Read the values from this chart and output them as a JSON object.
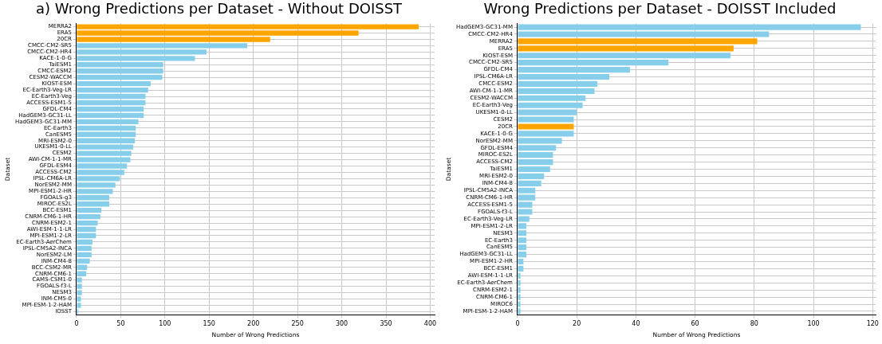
{
  "chart_data": [
    {
      "type": "bar",
      "orientation": "horizontal",
      "title": "a) Wrong Predictions per Dataset - Without DOISST",
      "xlabel": "Number of Wrong Predictions",
      "ylabel": "Dataset",
      "grid": true,
      "legend": false,
      "categories": [
        "MERRA2",
        "ERA5",
        "20CR",
        "CMCC-CM2-SR5",
        "CMCC-CM2-HR4",
        "KACE-1-0-G",
        "TaiESM1",
        "CMCC-ESM2",
        "CESM2-WACCM",
        "KIOST-ESM",
        "EC-Earth3-Veg-LR",
        "EC-Earth3-Veg",
        "ACCESS-ESM1-5",
        "GFDL-CM4",
        "HadGEM3-GC31-LL",
        "HadGEM3-GC31-MM",
        "EC-Earth3",
        "CanESM5",
        "MRI-ESM2-0",
        "UKESM1-0-LL",
        "CESM2",
        "AWI-CM-1-1-MR",
        "GFDL-ESM4",
        "ACCESS-CM2",
        "IPSL-CM6A-LR",
        "NorESM2-MM",
        "MPI-ESM1-2-HR",
        "FGOALS-g3",
        "MIROC-ES2L",
        "BCC-ESM1",
        "CNRM-CM6-1-HR",
        "CNRM-ESM2-1",
        "AWI-ESM-1-1-LR",
        "MPI-ESM1-2-LR",
        "EC-Earth3-AerChem",
        "IPSL-CM5A2-INCA",
        "NorESM2-LM",
        "INM-CM4-8",
        "BCC-CSM2-MR",
        "CNRM-CM6-1",
        "CAMS-CSM1-0",
        "FGOALS-f3-L",
        "NESM3",
        "INM-CM5-0",
        "MPI-ESM-1-2-HAM",
        "IOSST"
      ],
      "values": [
        387,
        319,
        219,
        193,
        147,
        134,
        98,
        98,
        97,
        84,
        81,
        78,
        78,
        76,
        76,
        70,
        67,
        67,
        66,
        64,
        62,
        61,
        57,
        54,
        49,
        44,
        41,
        37,
        37,
        28,
        27,
        24,
        22,
        22,
        18,
        17,
        17,
        15,
        12,
        11,
        6,
        6,
        6,
        5,
        5,
        2
      ],
      "colors": [
        "#ffa500",
        "#ffa500",
        "#ffa500",
        "#87ceeb",
        "#87ceeb",
        "#87ceeb",
        "#87ceeb",
        "#87ceeb",
        "#87ceeb",
        "#87ceeb",
        "#87ceeb",
        "#87ceeb",
        "#87ceeb",
        "#87ceeb",
        "#87ceeb",
        "#87ceeb",
        "#87ceeb",
        "#87ceeb",
        "#87ceeb",
        "#87ceeb",
        "#87ceeb",
        "#87ceeb",
        "#87ceeb",
        "#87ceeb",
        "#87ceeb",
        "#87ceeb",
        "#87ceeb",
        "#87ceeb",
        "#87ceeb",
        "#87ceeb",
        "#87ceeb",
        "#87ceeb",
        "#87ceeb",
        "#87ceeb",
        "#87ceeb",
        "#87ceeb",
        "#87ceeb",
        "#87ceeb",
        "#87ceeb",
        "#87ceeb",
        "#87ceeb",
        "#87ceeb",
        "#87ceeb",
        "#87ceeb",
        "#87ceeb",
        "#87ceeb"
      ],
      "xlim": [
        0,
        405
      ],
      "xticks": [
        0,
        50,
        100,
        150,
        200,
        250,
        300,
        350,
        400
      ]
    },
    {
      "type": "bar",
      "orientation": "horizontal",
      "title": "Wrong Predictions per Dataset - DOISST Included",
      "xlabel": "Number of Wrong Predictions",
      "ylabel": "Dataset",
      "grid": true,
      "legend": false,
      "categories": [
        "HadGEM3-GC31-MM",
        "CMCC-CM2-HR4",
        "MERRA2",
        "ERA5",
        "KIOST-ESM",
        "CMCC-CM2-SR5",
        "GFDL-CM4",
        "IPSL-CM6A-LR",
        "CMCC-ESM2",
        "AWI-CM-1-1-MR",
        "CESM2-WACCM",
        "EC-Earth3-Veg",
        "UKESM1-0-LL",
        "CESM2",
        "20CR",
        "KACE-1-0-G",
        "NorESM2-MM",
        "GFDL-ESM4",
        "MIROC-ES2L",
        "ACCESS-CM2",
        "TaiESM1",
        "MRI-ESM2-0",
        "INM-CM4-8",
        "IPSL-CM5A2-INCA",
        "CNRM-CM6-1-HR",
        "ACCESS-ESM1-5",
        "FGOALS-f3-L",
        "EC-Earth3-Veg-LR",
        "MPI-ESM1-2-LR",
        "NESM3",
        "EC-Earth3",
        "CanESM5",
        "HadGEM3-GC31-LL",
        "MPI-ESM1-2-HR",
        "BCC-ESM1",
        "AWI-ESM-1-1-LR",
        "EC-Earth3-AerChem",
        "CNRM-ESM2-1",
        "CNRM-CM6-1",
        "MIROC6",
        "MPI-ESM-1-2-HAM"
      ],
      "values": [
        116,
        85,
        81,
        73,
        72,
        51,
        38,
        31,
        27,
        26,
        23,
        22,
        20,
        19,
        19,
        19,
        15,
        13,
        12,
        12,
        11,
        9,
        8,
        6,
        6,
        5,
        5,
        4,
        3,
        3,
        3,
        3,
        3,
        2,
        2,
        1,
        1,
        1,
        1,
        1,
        1
      ],
      "colors": [
        "#87ceeb",
        "#87ceeb",
        "#ffa500",
        "#ffa500",
        "#87ceeb",
        "#87ceeb",
        "#87ceeb",
        "#87ceeb",
        "#87ceeb",
        "#87ceeb",
        "#87ceeb",
        "#87ceeb",
        "#87ceeb",
        "#87ceeb",
        "#ffa500",
        "#87ceeb",
        "#87ceeb",
        "#87ceeb",
        "#87ceeb",
        "#87ceeb",
        "#87ceeb",
        "#87ceeb",
        "#87ceeb",
        "#87ceeb",
        "#87ceeb",
        "#87ceeb",
        "#87ceeb",
        "#87ceeb",
        "#87ceeb",
        "#87ceeb",
        "#87ceeb",
        "#87ceeb",
        "#87ceeb",
        "#87ceeb",
        "#87ceeb",
        "#87ceeb",
        "#87ceeb",
        "#87ceeb",
        "#87ceeb",
        "#87ceeb",
        "#87ceeb"
      ],
      "xlim": [
        0,
        121
      ],
      "xticks": [
        0,
        20,
        40,
        60,
        80,
        100,
        120
      ]
    }
  ]
}
